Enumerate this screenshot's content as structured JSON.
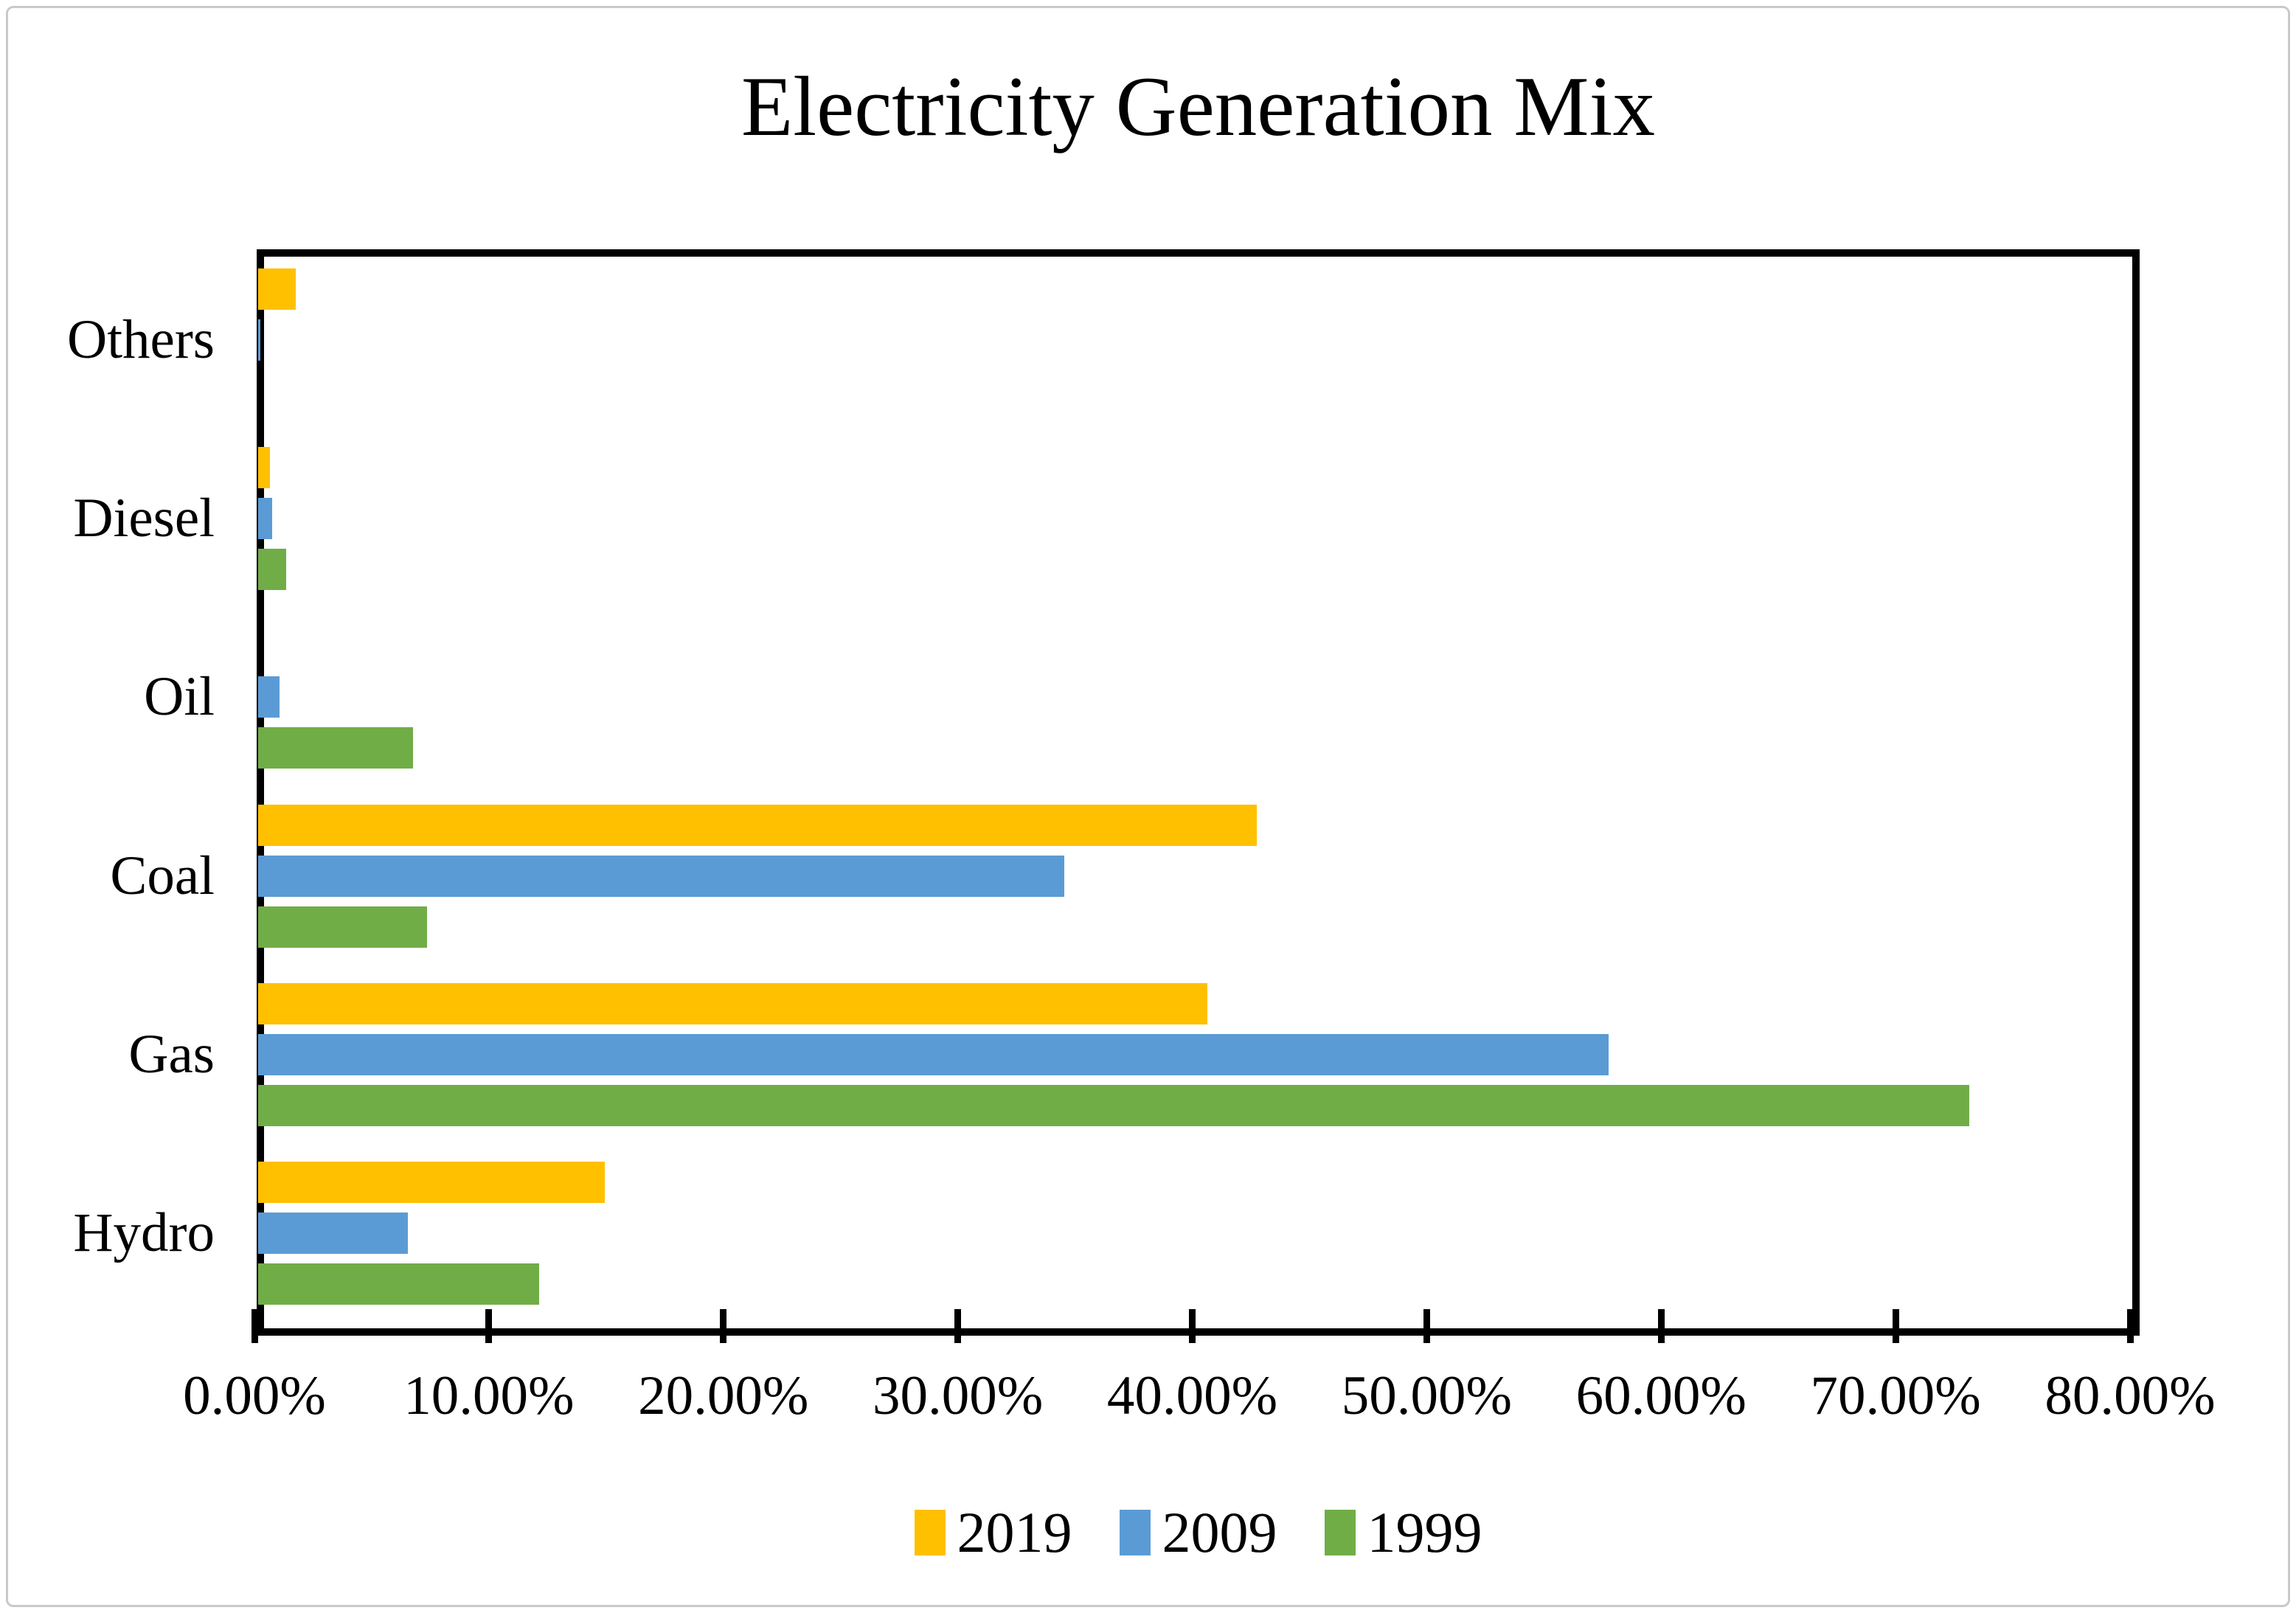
{
  "frame": {
    "border_color": "#c9c9c9",
    "background": "#ffffff"
  },
  "chart_data": {
    "type": "bar",
    "orientation": "horizontal",
    "title": "Electricity Generation Mix",
    "categories": [
      "Others",
      "Diesel",
      "Oil",
      "Coal",
      "Gas",
      "Hydro"
    ],
    "series": [
      {
        "name": "2019",
        "color": "#FFC000",
        "values": [
          1.6,
          0.5,
          0,
          42.6,
          40.5,
          14.8
        ]
      },
      {
        "name": "2009",
        "color": "#5B9BD5",
        "values": [
          0.1,
          0.6,
          0.9,
          34.4,
          57.6,
          6.4
        ]
      },
      {
        "name": "1999",
        "color": "#70AD47",
        "values": [
          0,
          1.2,
          6.6,
          7.2,
          73.0,
          12.0
        ]
      }
    ],
    "xlabel": "",
    "ylabel": "",
    "x_axis": {
      "min": 0,
      "max": 80,
      "tick_step": 10,
      "tick_labels": [
        "0.00%",
        "10.00%",
        "20.00%",
        "30.00%",
        "40.00%",
        "50.00%",
        "60.00%",
        "70.00%",
        "80.00%"
      ]
    },
    "grid": false,
    "legend_position": "bottom",
    "axis_color": "#000000",
    "text_color": "#000000"
  }
}
